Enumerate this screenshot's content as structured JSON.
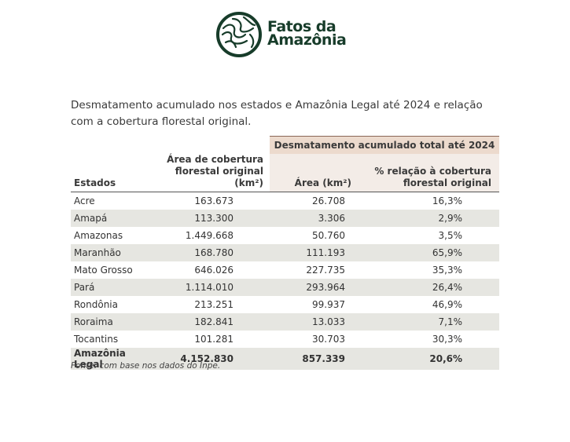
{
  "header": {
    "logo": [
      "Fatos da",
      "Amazônia"
    ]
  },
  "caption": "Desmatamento acumulado nos estados e Amazônia Legal até 2024 e relação com a cobertura florestal original.",
  "table": {
    "group_header": "Desmatamento acumulado total até 2024",
    "columns": [
      "Estados",
      "Área de cobertura florestal original (km²)",
      "Área (km²)",
      "% relação à cobertura florestal original"
    ],
    "rows": [
      [
        "Acre",
        "163.673",
        "26.708",
        "16,3%"
      ],
      [
        "Amapá",
        "113.300",
        "3.306",
        "2,9%"
      ],
      [
        "Amazonas",
        "1.449.668",
        "50.760",
        "3,5%"
      ],
      [
        "Maranhão",
        "168.780",
        "111.193",
        "65,9%"
      ],
      [
        "Mato Grosso",
        "646.026",
        "227.735",
        "35,3%"
      ],
      [
        "Pará",
        "1.114.010",
        "293.964",
        "26,4%"
      ],
      [
        "Rondônia",
        "213.251",
        "99.937",
        "46,9%"
      ],
      [
        "Roraima",
        "182.841",
        "13.033",
        "7,1%"
      ],
      [
        "Tocantins",
        "101.281",
        "30.703",
        "30,3%"
      ]
    ],
    "total": [
      "Amazônia Legal",
      "4.152.830",
      "857.339",
      "20,6%"
    ]
  },
  "source": "Fonte: com base nos dados do Inpe."
}
